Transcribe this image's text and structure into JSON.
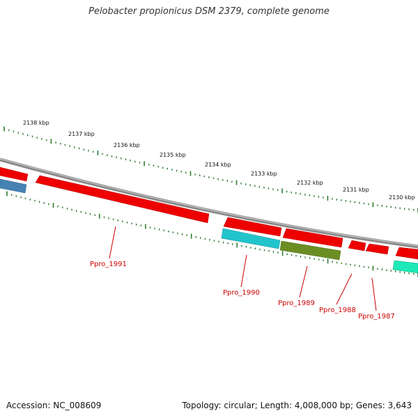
{
  "title": "Pelobacter propionicus DSM 2379, complete genome",
  "footer": {
    "accession": "Accession: NC_008609",
    "topology": "Topology: circular; Length: 4,008,000 bp; Genes: 3,643"
  },
  "scale_labels": [
    "2138 kbp",
    "2137 kbp",
    "2136 kbp",
    "2135 kbp",
    "2134 kbp",
    "2133 kbp",
    "2132 kbp",
    "2131 kbp",
    "2130 kbp"
  ],
  "gene_labels": [
    "Ppro_1991",
    "Ppro_1990",
    "Ppro_1989",
    "Ppro_1988",
    "Ppro_1987"
  ],
  "colors": {
    "backbone": "#8a8a8a",
    "tick": "#2e7d32",
    "red_gene": "#ee0000",
    "cyan_gene": "#22c4cc",
    "olive_gene": "#6b8e23",
    "blue_gene": "#4682b4",
    "teal_gene": "#1de9b6",
    "label": "#cc0000"
  }
}
